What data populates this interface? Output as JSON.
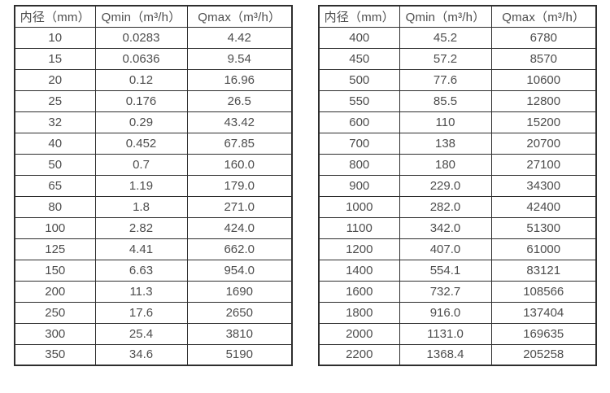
{
  "colors": {
    "border": "#2e2e2e",
    "text": "#4d4d4d",
    "background": "#ffffff"
  },
  "tables": [
    {
      "name": "flow-spec-table-small-diameters",
      "headers": [
        "内径（mm）",
        "Qmin（m³/h）",
        "Qmax（m³/h）"
      ],
      "rows": [
        [
          "10",
          "0.0283",
          "4.42"
        ],
        [
          "15",
          "0.0636",
          "9.54"
        ],
        [
          "20",
          "0.12",
          "16.96"
        ],
        [
          "25",
          "0.176",
          "26.5"
        ],
        [
          "32",
          "0.29",
          "43.42"
        ],
        [
          "40",
          "0.452",
          "67.85"
        ],
        [
          "50",
          "0.7",
          "160.0"
        ],
        [
          "65",
          "1.19",
          "179.0"
        ],
        [
          "80",
          "1.8",
          "271.0"
        ],
        [
          "100",
          "2.82",
          "424.0"
        ],
        [
          "125",
          "4.41",
          "662.0"
        ],
        [
          "150",
          "6.63",
          "954.0"
        ],
        [
          "200",
          "11.3",
          "1690"
        ],
        [
          "250",
          "17.6",
          "2650"
        ],
        [
          "300",
          "25.4",
          "3810"
        ],
        [
          "350",
          "34.6",
          "5190"
        ]
      ]
    },
    {
      "name": "flow-spec-table-large-diameters",
      "headers": [
        "内径（mm）",
        "Qmin（m³/h）",
        "Qmax（m³/h）"
      ],
      "rows": [
        [
          "400",
          "45.2",
          "6780"
        ],
        [
          "450",
          "57.2",
          "8570"
        ],
        [
          "500",
          "77.6",
          "10600"
        ],
        [
          "550",
          "85.5",
          "12800"
        ],
        [
          "600",
          "110",
          "15200"
        ],
        [
          "700",
          "138",
          "20700"
        ],
        [
          "800",
          "180",
          "27100"
        ],
        [
          "900",
          "229.0",
          "34300"
        ],
        [
          "1000",
          "282.0",
          "42400"
        ],
        [
          "1100",
          "342.0",
          "51300"
        ],
        [
          "1200",
          "407.0",
          "61000"
        ],
        [
          "1400",
          "554.1",
          "83121"
        ],
        [
          "1600",
          "732.7",
          "108566"
        ],
        [
          "1800",
          "916.0",
          "137404"
        ],
        [
          "2000",
          "1131.0",
          "169635"
        ],
        [
          "2200",
          "1368.4",
          "205258"
        ]
      ]
    }
  ]
}
